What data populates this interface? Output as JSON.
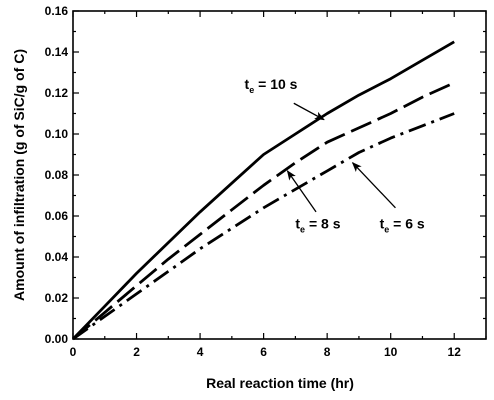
{
  "chart_data": {
    "type": "line",
    "xlabel": "Real reaction time (hr)",
    "ylabel": "Amount of infiltration (g of SiC/g of C)",
    "xlim": [
      0,
      13
    ],
    "ylim": [
      0,
      0.16
    ],
    "xticks": [
      0,
      2,
      4,
      6,
      8,
      10,
      12
    ],
    "yticks": [
      0.0,
      0.02,
      0.04,
      0.06,
      0.08,
      0.1,
      0.12,
      0.14,
      0.16
    ],
    "xtick_labels": [
      "0",
      "2",
      "4",
      "6",
      "8",
      "10",
      "12"
    ],
    "ytick_labels": [
      "0.00",
      "0.02",
      "0.04",
      "0.06",
      "0.08",
      "0.10",
      "0.12",
      "0.14",
      "0.16"
    ],
    "grid": false,
    "series": [
      {
        "name": "t_e = 10 s",
        "style": "solid",
        "x": [
          0,
          1,
          2,
          3,
          4,
          5,
          6,
          7,
          8,
          9,
          10,
          11,
          12
        ],
        "y": [
          0,
          0.016,
          0.032,
          0.047,
          0.062,
          0.076,
          0.09,
          0.1,
          0.11,
          0.119,
          0.127,
          0.136,
          0.145
        ]
      },
      {
        "name": "t_e = 8 s",
        "style": "long-dash",
        "x": [
          0,
          1,
          2,
          3,
          4,
          5,
          6,
          7,
          8,
          9,
          10,
          11,
          12
        ],
        "y": [
          0,
          0.013,
          0.026,
          0.039,
          0.051,
          0.063,
          0.075,
          0.086,
          0.096,
          0.103,
          0.11,
          0.118,
          0.125
        ]
      },
      {
        "name": "t_e = 6 s",
        "style": "dash-dot",
        "x": [
          0,
          1,
          2,
          3,
          4,
          5,
          6,
          7,
          8,
          9,
          10,
          11,
          12
        ],
        "y": [
          0,
          0.011,
          0.022,
          0.033,
          0.044,
          0.054,
          0.064,
          0.073,
          0.082,
          0.091,
          0.098,
          0.104,
          0.11
        ]
      }
    ],
    "annotations": [
      {
        "prefix": "t",
        "sub": "e",
        "suffix": " = 10 s",
        "text_at": [
          5.4,
          0.122
        ],
        "arrow_from": [
          6.95,
          0.115
        ],
        "arrow_to": [
          7.9,
          0.107
        ]
      },
      {
        "prefix": "t",
        "sub": "e",
        "suffix": " = 8 s",
        "text_at": [
          7.0,
          0.054
        ],
        "arrow_from": [
          7.65,
          0.062
        ],
        "arrow_to": [
          6.75,
          0.082
        ]
      },
      {
        "prefix": "t",
        "sub": "e",
        "suffix": " = 6 s",
        "text_at": [
          9.65,
          0.054
        ],
        "arrow_from": [
          10.15,
          0.064
        ],
        "arrow_to": [
          8.8,
          0.086
        ]
      }
    ]
  }
}
